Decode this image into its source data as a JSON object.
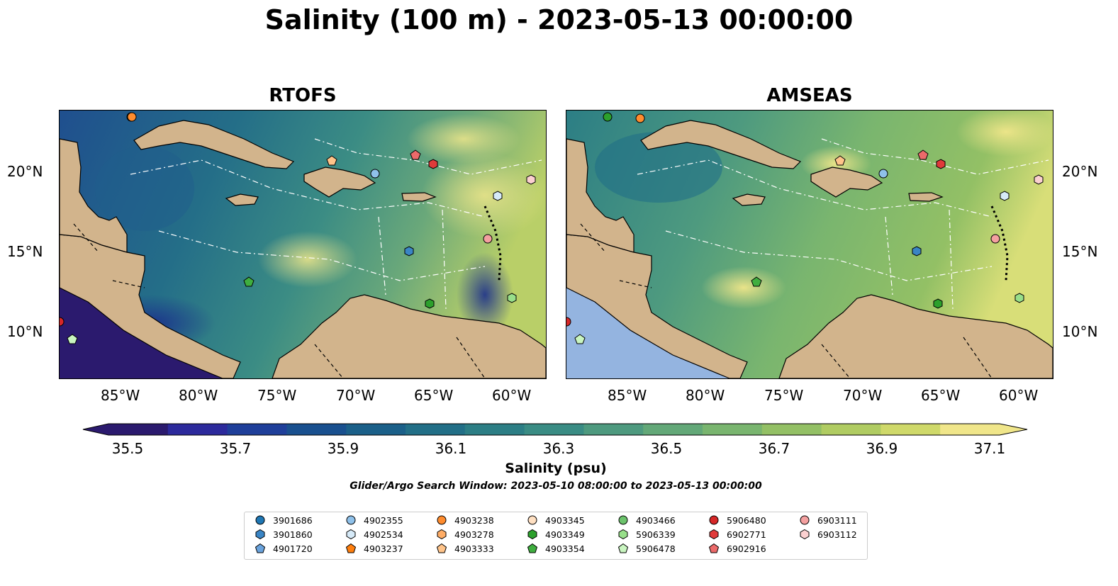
{
  "title": "Salinity (100 m) - 2023-05-13 00:00:00",
  "panels": [
    {
      "title": "RTOFS"
    },
    {
      "title": "AMSEAS"
    }
  ],
  "axes": {
    "lat_labels": [
      "20°N",
      "15°N",
      "10°N"
    ],
    "lon_labels": [
      "85°W",
      "80°W",
      "75°W",
      "70°W",
      "65°W",
      "60°W"
    ]
  },
  "colorbar": {
    "ticks": [
      "35.5",
      "35.7",
      "35.9",
      "36.1",
      "36.3",
      "36.5",
      "36.7",
      "36.9",
      "37.1"
    ],
    "label": "Salinity (psu)",
    "colors": [
      "#2b1a6e",
      "#2c2a9c",
      "#1f3f9a",
      "#19508f",
      "#1b6089",
      "#226f87",
      "#2c7e85",
      "#3a8c84",
      "#4e9a7f",
      "#63a878",
      "#79b56f",
      "#93c065",
      "#b0cc62",
      "#cfd96a",
      "#f0e68a"
    ]
  },
  "search_window": "Glider/Argo Search Window: 2023-05-10 08:00:00 to 2023-05-13 00:00:00",
  "colors": {
    "land": "#d2b48c",
    "ocean": "#94b4e0"
  },
  "floats": [
    {
      "id": "3901686",
      "shape": "circle",
      "color": "#1f77b4"
    },
    {
      "id": "3901860",
      "shape": "hexagon",
      "color": "#3a85c5"
    },
    {
      "id": "4901720",
      "shape": "pentagon",
      "color": "#6aa3dd"
    },
    {
      "id": "4902355",
      "shape": "circle",
      "color": "#8fc1ea"
    },
    {
      "id": "4902534",
      "shape": "hexagon",
      "color": "#d6eaf8"
    },
    {
      "id": "4903237",
      "shape": "pentagon",
      "color": "#ff7f0e"
    },
    {
      "id": "4903238",
      "shape": "circle",
      "color": "#ff8c2e"
    },
    {
      "id": "4903278",
      "shape": "hexagon",
      "color": "#ffad66"
    },
    {
      "id": "4903333",
      "shape": "pentagon",
      "color": "#ffc48a"
    },
    {
      "id": "4903345",
      "shape": "circle",
      "color": "#ffe0c2"
    },
    {
      "id": "4903349",
      "shape": "hexagon",
      "color": "#2ca02c"
    },
    {
      "id": "4903354",
      "shape": "pentagon",
      "color": "#3fae3f"
    },
    {
      "id": "4903466",
      "shape": "circle",
      "color": "#6cc36c"
    },
    {
      "id": "5906339",
      "shape": "hexagon",
      "color": "#98df8a"
    },
    {
      "id": "5906478",
      "shape": "pentagon",
      "color": "#c9f5c0"
    },
    {
      "id": "5906480",
      "shape": "circle",
      "color": "#d62728"
    },
    {
      "id": "6902771",
      "shape": "hexagon",
      "color": "#e03a3a"
    },
    {
      "id": "6902916",
      "shape": "pentagon",
      "color": "#ec6a6a"
    },
    {
      "id": "6903111",
      "shape": "circle",
      "color": "#f4a0a0"
    },
    {
      "id": "6903112",
      "shape": "hexagon",
      "color": "#fbd0d0"
    }
  ]
}
